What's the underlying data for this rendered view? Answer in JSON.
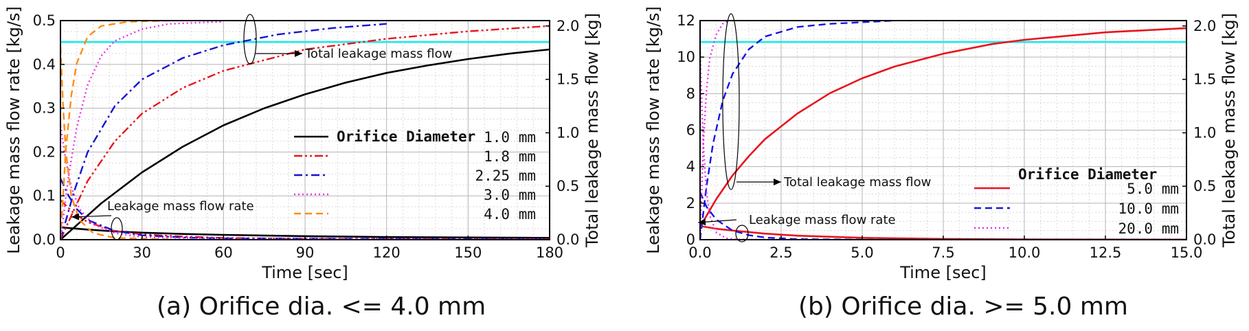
{
  "captions": {
    "a": "(a) Orifice dia. <= 4.0 mm",
    "b": "(b) Orifice dia. >= 5.0 mm"
  },
  "colors": {
    "d1_0": "#000000",
    "d1_8": "#e8141e",
    "d2_25": "#1414d6",
    "d3_0": "#e62de6",
    "d4_0": "#ff8c14",
    "d5_0": "#e8141e",
    "d10_0": "#1414e6",
    "d20_0": "#e62de6",
    "threshold": "#2ee6e6"
  },
  "chart_data": [
    {
      "type": "line",
      "panel": "a",
      "xlabel": "Time [sec]",
      "ylabel": "Leakage mass flow rate [kg/s]",
      "y2label": "Total leakage mass flow [kg]",
      "xlim": [
        0,
        180
      ],
      "ylim": [
        0,
        0.5
      ],
      "y2lim": [
        0,
        2.05
      ],
      "xticks": [
        0,
        30,
        60,
        90,
        120,
        150,
        180
      ],
      "xtick_labels": [
        "0",
        "30",
        "60",
        "90",
        "120",
        "150",
        "180"
      ],
      "yticks": [
        0,
        0.1,
        0.2,
        0.3,
        0.4,
        0.5
      ],
      "ytick_labels": [
        "0.0",
        "0.1",
        "0.2",
        "0.3",
        "0.4",
        "0.5"
      ],
      "y2ticks": [
        0,
        0.5,
        1.0,
        1.5,
        2.0
      ],
      "y2tick_labels": [
        "0.0",
        "0.5",
        "1.0",
        "1.5",
        "2.0"
      ],
      "grid": true,
      "threshold_total": 1.85,
      "legend_title": "Orifice Diameter",
      "legend_position": "center-right",
      "annotations": {
        "total": "Total leakage mass flow",
        "rate": "Leakage mass flow rate"
      },
      "series": [
        {
          "name": "1.0",
          "unit": "mm",
          "color": "d1_0",
          "dash": "solid",
          "rate": [
            [
              0,
              0.028
            ],
            [
              10,
              0.023
            ],
            [
              20,
              0.019
            ],
            [
              30,
              0.016
            ],
            [
              45,
              0.013
            ],
            [
              60,
              0.011
            ],
            [
              90,
              0.008
            ],
            [
              120,
              0.006
            ],
            [
              150,
              0.005
            ],
            [
              180,
              0.004
            ]
          ],
          "total": [
            [
              0,
              0
            ],
            [
              15,
              0.34
            ],
            [
              30,
              0.63
            ],
            [
              45,
              0.87
            ],
            [
              60,
              1.07
            ],
            [
              75,
              1.23
            ],
            [
              90,
              1.36
            ],
            [
              105,
              1.47
            ],
            [
              120,
              1.56
            ],
            [
              135,
              1.63
            ],
            [
              150,
              1.69
            ],
            [
              165,
              1.74
            ],
            [
              180,
              1.78
            ]
          ]
        },
        {
          "name": "1.8",
          "unit": "mm",
          "color": "d1_8",
          "dash": "dashdotdot",
          "rate": [
            [
              0,
              0.09
            ],
            [
              5,
              0.06
            ],
            [
              10,
              0.04
            ],
            [
              20,
              0.02
            ],
            [
              30,
              0.012
            ],
            [
              45,
              0.007
            ],
            [
              60,
              0.004
            ],
            [
              90,
              0.002
            ],
            [
              180,
              0.001
            ]
          ],
          "total": [
            [
              0,
              0
            ],
            [
              5,
              0.28
            ],
            [
              10,
              0.55
            ],
            [
              20,
              0.92
            ],
            [
              30,
              1.18
            ],
            [
              45,
              1.42
            ],
            [
              60,
              1.58
            ],
            [
              90,
              1.78
            ],
            [
              120,
              1.88
            ],
            [
              150,
              1.95
            ],
            [
              180,
              2.0
            ]
          ]
        },
        {
          "name": "2.25",
          "unit": "mm",
          "color": "d2_25",
          "dash": "dashdot",
          "rate": [
            [
              0,
              0.14
            ],
            [
              3,
              0.1
            ],
            [
              6,
              0.07
            ],
            [
              10,
              0.045
            ],
            [
              20,
              0.02
            ],
            [
              30,
              0.01
            ],
            [
              45,
              0.005
            ],
            [
              60,
              0.003
            ],
            [
              180,
              0.001
            ]
          ],
          "total": [
            [
              0,
              0
            ],
            [
              5,
              0.45
            ],
            [
              10,
              0.82
            ],
            [
              20,
              1.25
            ],
            [
              30,
              1.5
            ],
            [
              45,
              1.7
            ],
            [
              60,
              1.82
            ],
            [
              80,
              1.92
            ],
            [
              100,
              1.98
            ],
            [
              120,
              2.02
            ]
          ]
        },
        {
          "name": "3.0",
          "unit": "mm",
          "color": "d3_0",
          "dash": "dotted",
          "rate": [
            [
              0,
              0.26
            ],
            [
              2,
              0.18
            ],
            [
              4,
              0.12
            ],
            [
              7,
              0.07
            ],
            [
              12,
              0.035
            ],
            [
              20,
              0.015
            ],
            [
              30,
              0.006
            ],
            [
              60,
              0.002
            ],
            [
              180,
              0.001
            ]
          ],
          "total": [
            [
              0,
              0
            ],
            [
              3,
              0.6
            ],
            [
              6,
              1.05
            ],
            [
              10,
              1.45
            ],
            [
              15,
              1.72
            ],
            [
              20,
              1.86
            ],
            [
              30,
              1.97
            ],
            [
              40,
              2.02
            ],
            [
              60,
              2.04
            ]
          ]
        },
        {
          "name": "4.0",
          "unit": "mm",
          "color": "d4_0",
          "dash": "dashed",
          "rate": [
            [
              0,
              0.44
            ],
            [
              1,
              0.3
            ],
            [
              2,
              0.2
            ],
            [
              4,
              0.1
            ],
            [
              7,
              0.045
            ],
            [
              12,
              0.015
            ],
            [
              20,
              0.004
            ],
            [
              40,
              0.001
            ]
          ],
          "total": [
            [
              0,
              0
            ],
            [
              2,
              0.85
            ],
            [
              4,
              1.35
            ],
            [
              6,
              1.65
            ],
            [
              10,
              1.9
            ],
            [
              15,
              2.0
            ],
            [
              25,
              2.04
            ],
            [
              40,
              2.05
            ]
          ]
        }
      ]
    },
    {
      "type": "line",
      "panel": "b",
      "xlabel": "Time [sec]",
      "ylabel": "Leakage mass flow rate [kg/s]",
      "y2label": "Total leakage mass flow [kg]",
      "xlim": [
        0,
        15
      ],
      "ylim": [
        0,
        12
      ],
      "y2lim": [
        0,
        2.05
      ],
      "xticks": [
        0,
        2.5,
        5,
        7.5,
        10,
        12.5,
        15
      ],
      "xtick_labels": [
        "0.0",
        "2.5",
        "5.0",
        "7.5",
        "10.0",
        "12.5",
        "15.0"
      ],
      "yticks": [
        0,
        2,
        4,
        6,
        8,
        10,
        12
      ],
      "ytick_labels": [
        "0",
        "2",
        "4",
        "6",
        "8",
        "10",
        "12"
      ],
      "y2ticks": [
        0,
        0.5,
        1.0,
        1.5,
        2.0
      ],
      "y2tick_labels": [
        "0.0",
        "0.5",
        "1.0",
        "1.5",
        "2.0"
      ],
      "grid": true,
      "threshold_total": 1.85,
      "legend_title": "Orifice Diameter",
      "legend_position": "bottom-right",
      "annotations": {
        "total": "Total leakage mass flow",
        "rate": "Leakage mass flow rate"
      },
      "series": [
        {
          "name": "5.0",
          "unit": "mm",
          "color": "d5_0",
          "dash": "solid",
          "rate": [
            [
              0,
              0.75
            ],
            [
              0.5,
              0.6
            ],
            [
              1,
              0.5
            ],
            [
              2,
              0.33
            ],
            [
              3,
              0.22
            ],
            [
              5,
              0.1
            ],
            [
              7.5,
              0.04
            ],
            [
              10,
              0.015
            ],
            [
              15,
              0.003
            ]
          ],
          "total": [
            [
              0,
              0.12
            ],
            [
              0.5,
              0.38
            ],
            [
              1,
              0.6
            ],
            [
              1.5,
              0.78
            ],
            [
              2,
              0.94
            ],
            [
              3,
              1.18
            ],
            [
              4,
              1.37
            ],
            [
              5,
              1.51
            ],
            [
              6,
              1.62
            ],
            [
              7.5,
              1.74
            ],
            [
              9,
              1.83
            ],
            [
              10,
              1.87
            ],
            [
              12.5,
              1.94
            ],
            [
              15,
              1.98
            ]
          ]
        },
        {
          "name": "10.0",
          "unit": "mm",
          "color": "d10_0",
          "dash": "dashed",
          "rate": [
            [
              0,
              2.6
            ],
            [
              0.2,
              1.8
            ],
            [
              0.5,
              1.1
            ],
            [
              1,
              0.5
            ],
            [
              1.5,
              0.25
            ],
            [
              2,
              0.12
            ],
            [
              3,
              0.03
            ],
            [
              5,
              0.005
            ],
            [
              15,
              0.001
            ]
          ],
          "total": [
            [
              0,
              0
            ],
            [
              0.2,
              0.5
            ],
            [
              0.4,
              0.9
            ],
            [
              0.7,
              1.3
            ],
            [
              1,
              1.55
            ],
            [
              1.5,
              1.78
            ],
            [
              2,
              1.9
            ],
            [
              3,
              1.99
            ],
            [
              4,
              2.02
            ],
            [
              6,
              2.05
            ]
          ]
        },
        {
          "name": "20.0",
          "unit": "mm",
          "color": "d20_0",
          "dash": "dotted",
          "rate": [
            [
              0,
              10.5
            ],
            [
              0.05,
              7.5
            ],
            [
              0.1,
              5.2
            ],
            [
              0.2,
              2.6
            ],
            [
              0.3,
              1.3
            ],
            [
              0.5,
              0.4
            ],
            [
              0.8,
              0.08
            ],
            [
              1.2,
              0.01
            ],
            [
              3,
              0.001
            ]
          ],
          "total": [
            [
              0,
              0
            ],
            [
              0.1,
              0.9
            ],
            [
              0.2,
              1.4
            ],
            [
              0.3,
              1.7
            ],
            [
              0.5,
              1.92
            ],
            [
              0.7,
              2.02
            ],
            [
              0.9,
              2.05
            ]
          ]
        }
      ]
    }
  ]
}
